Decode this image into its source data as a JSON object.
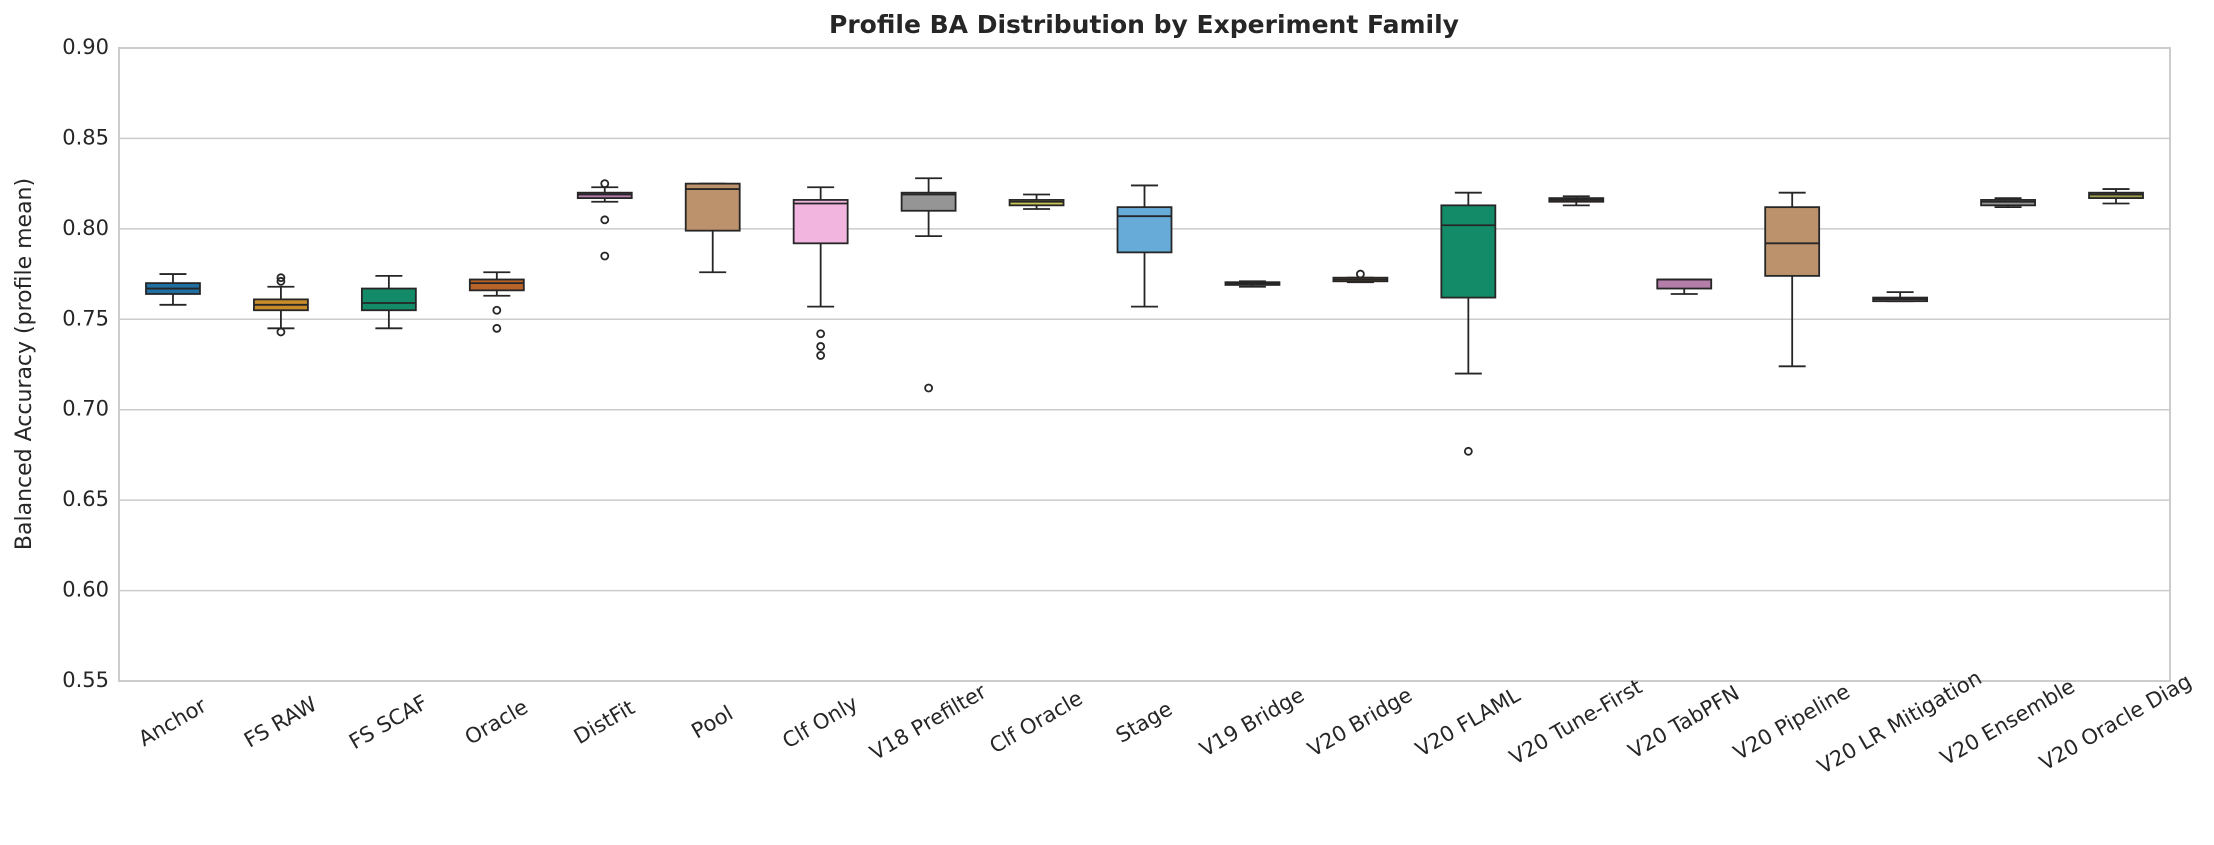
{
  "chart_data": {
    "type": "box",
    "title": "Profile BA Distribution by Experiment Family",
    "y_label": "Balanced Accuracy (profile mean)",
    "categories": [
      "Anchor",
      "FS RAW",
      "FS SCAF",
      "Oracle",
      "DistFit",
      "Pool",
      "Clf Only",
      "V18 Prefilter",
      "Clf Oracle",
      "Stage",
      "V19 Bridge",
      "V20 Bridge",
      "V20 FLAML",
      "V20 Tune-First",
      "V20 TabPFN",
      "V20 Pipeline",
      "V20 LR Mitigation",
      "V20 Ensemble",
      "V20 Oracle Diag"
    ],
    "colors": [
      "#1f6fa3",
      "#c98b28",
      "#148b68",
      "#b8632a",
      "#b47daa",
      "#bb926b",
      "#f2b5df",
      "#959595",
      "#c9c255",
      "#67acd8",
      "#1f6fa3",
      "#c98b28",
      "#148b68",
      "#b8632a",
      "#b47daa",
      "#bb926b",
      "#f2b5df",
      "#959595",
      "#9a9a4a"
    ],
    "boxes": [
      {
        "whislo": 0.758,
        "q1": 0.764,
        "med": 0.767,
        "q3": 0.77,
        "whishi": 0.775,
        "fliers": []
      },
      {
        "whislo": 0.745,
        "q1": 0.755,
        "med": 0.758,
        "q3": 0.761,
        "whishi": 0.768,
        "fliers": [
          0.773,
          0.771,
          0.743
        ]
      },
      {
        "whislo": 0.745,
        "q1": 0.755,
        "med": 0.759,
        "q3": 0.767,
        "whishi": 0.774,
        "fliers": []
      },
      {
        "whislo": 0.763,
        "q1": 0.766,
        "med": 0.77,
        "q3": 0.772,
        "whishi": 0.776,
        "fliers": [
          0.755,
          0.745
        ]
      },
      {
        "whislo": 0.815,
        "q1": 0.817,
        "med": 0.819,
        "q3": 0.82,
        "whishi": 0.823,
        "fliers": [
          0.825,
          0.805,
          0.785
        ]
      },
      {
        "whislo": 0.776,
        "q1": 0.799,
        "med": 0.822,
        "q3": 0.825,
        "whishi": 0.825,
        "fliers": []
      },
      {
        "whislo": 0.757,
        "q1": 0.792,
        "med": 0.814,
        "q3": 0.816,
        "whishi": 0.823,
        "fliers": [
          0.742,
          0.735,
          0.73
        ]
      },
      {
        "whislo": 0.796,
        "q1": 0.81,
        "med": 0.819,
        "q3": 0.82,
        "whishi": 0.828,
        "fliers": [
          0.712
        ]
      },
      {
        "whislo": 0.811,
        "q1": 0.813,
        "med": 0.815,
        "q3": 0.816,
        "whishi": 0.819,
        "fliers": []
      },
      {
        "whislo": 0.757,
        "q1": 0.787,
        "med": 0.807,
        "q3": 0.812,
        "whishi": 0.824,
        "fliers": []
      },
      {
        "whislo": 0.768,
        "q1": 0.769,
        "med": 0.77,
        "q3": 0.7705,
        "whishi": 0.771,
        "fliers": []
      },
      {
        "whislo": 0.7705,
        "q1": 0.771,
        "med": 0.772,
        "q3": 0.773,
        "whishi": 0.773,
        "fliers": [
          0.775
        ]
      },
      {
        "whislo": 0.72,
        "q1": 0.762,
        "med": 0.802,
        "q3": 0.813,
        "whishi": 0.82,
        "fliers": [
          0.677
        ]
      },
      {
        "whislo": 0.813,
        "q1": 0.815,
        "med": 0.816,
        "q3": 0.817,
        "whishi": 0.818,
        "fliers": []
      },
      {
        "whislo": 0.764,
        "q1": 0.767,
        "med": 0.772,
        "q3": 0.772,
        "whishi": 0.772,
        "fliers": []
      },
      {
        "whislo": 0.724,
        "q1": 0.774,
        "med": 0.792,
        "q3": 0.812,
        "whishi": 0.82,
        "fliers": []
      },
      {
        "whislo": 0.76,
        "q1": 0.76,
        "med": 0.761,
        "q3": 0.762,
        "whishi": 0.765,
        "fliers": []
      },
      {
        "whislo": 0.812,
        "q1": 0.813,
        "med": 0.815,
        "q3": 0.816,
        "whishi": 0.817,
        "fliers": []
      },
      {
        "whislo": 0.814,
        "q1": 0.817,
        "med": 0.819,
        "q3": 0.82,
        "whishi": 0.822,
        "fliers": []
      }
    ],
    "ylim": [
      0.55,
      0.9
    ],
    "yticks": [
      0.55,
      {
        "value": 0.6,
        "label": "0.60"
      },
      0.65,
      {
        "value": 0.7,
        "label": "0.70"
      },
      0.75,
      {
        "value": 0.8,
        "label": "0.80"
      },
      0.85,
      {
        "value": 0.9,
        "label": "0.90"
      }
    ],
    "grid": true
  }
}
